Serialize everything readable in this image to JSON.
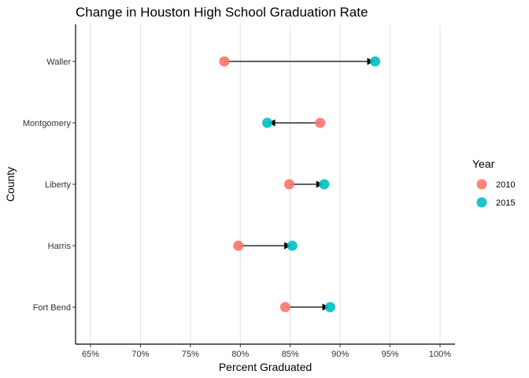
{
  "chart_data": {
    "type": "dumbbell",
    "title": "Change in Houston High School Graduation Rate",
    "xlabel": "Percent Graduated",
    "ylabel": "County",
    "xlim": [
      0.635,
      1.015
    ],
    "xticks": [
      0.65,
      0.7,
      0.75,
      0.8,
      0.85,
      0.9,
      0.95,
      1.0
    ],
    "xtick_labels": [
      "65%",
      "70%",
      "75%",
      "80%",
      "85%",
      "90%",
      "95%",
      "100%"
    ],
    "categories": [
      "Waller",
      "Montgomery",
      "Liberty",
      "Harris",
      "Fort Bend"
    ],
    "highlight_category": "Harris",
    "highlight_color": "#e41a1c",
    "series": [
      {
        "name": "2010",
        "color": "#f8766d",
        "values": [
          0.784,
          0.88,
          0.849,
          0.798,
          0.845
        ]
      },
      {
        "name": "2015",
        "color": "#00bfc4",
        "values": [
          0.935,
          0.827,
          0.884,
          0.852,
          0.89
        ]
      }
    ],
    "legend": {
      "title": "Year",
      "position": "right"
    },
    "grid": "vertical-major"
  }
}
